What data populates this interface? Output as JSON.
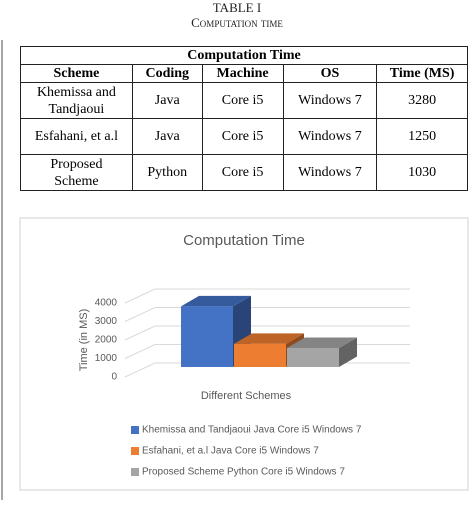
{
  "header": {
    "label": "TABLE I",
    "title": "Computation time"
  },
  "table": {
    "title": "Computation Time",
    "columns": [
      "Scheme",
      "Coding",
      "Machine",
      "OS",
      "Time (MS)"
    ],
    "rows": [
      [
        "Khemissa and Tandjaoui",
        "Java",
        "Core i5",
        "Windows 7",
        3280
      ],
      [
        "Esfahani, et a.l",
        "Java",
        "Core i5",
        "Windows 7",
        1250
      ],
      [
        "Proposed Scheme",
        "Python",
        "Core i5",
        "Windows 7",
        1030
      ]
    ]
  },
  "chart_data": {
    "type": "bar",
    "three_d": true,
    "title": "Computation Time",
    "xlabel": "Different Schemes",
    "ylabel": "Time (in MS)",
    "categories": [
      null
    ],
    "series": [
      {
        "name": "Khemissa and Tandjaoui Java Core i5 Windows 7",
        "color": "#4472c4",
        "values": [
          3280
        ]
      },
      {
        "name": "Esfahani, et a.l Java Core i5 Windows 7",
        "color": "#ed7d31",
        "values": [
          1250
        ]
      },
      {
        "name": "Proposed Scheme Python Core i5 Windows 7",
        "color": "#a5a5a5",
        "values": [
          1030
        ]
      }
    ],
    "ylim": [
      0,
      4000
    ],
    "yticks": [
      0,
      1000,
      2000,
      3000,
      4000
    ],
    "grid": true,
    "legend": "bottom"
  }
}
